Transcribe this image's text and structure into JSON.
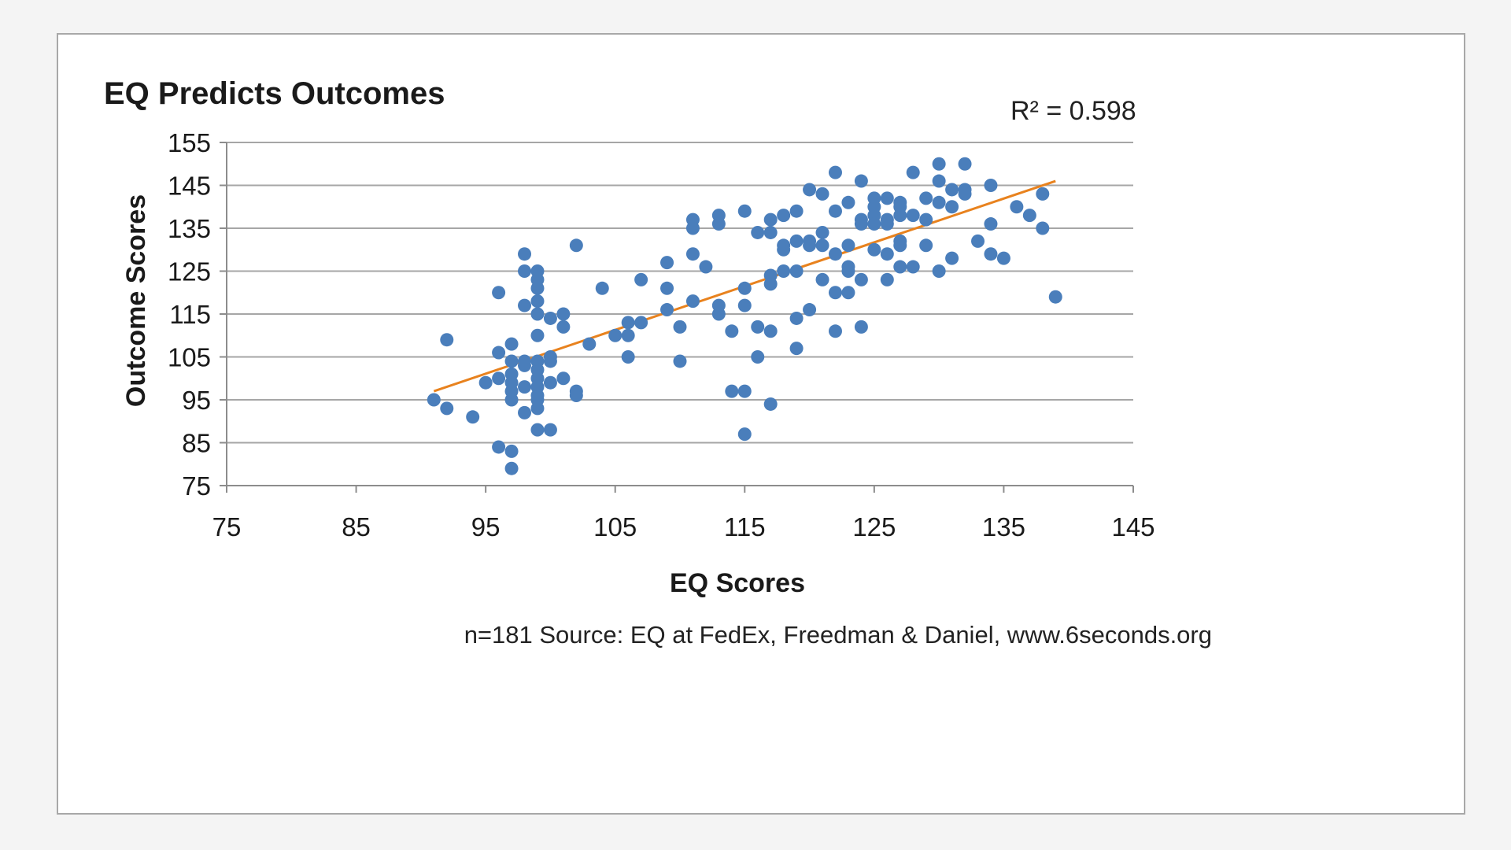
{
  "chart_data": {
    "type": "scatter",
    "title": "EQ Predicts Outcomes",
    "xlabel": "EQ Scores",
    "ylabel": "Outcome Scores",
    "xlim": [
      75,
      145
    ],
    "ylim": [
      75,
      155
    ],
    "x_ticks": [
      "75",
      "85",
      "95",
      "105",
      "115",
      "125",
      "135",
      "145"
    ],
    "y_ticks": [
      "155",
      "145",
      "135",
      "125",
      "115",
      "105",
      "95",
      "85",
      "75"
    ],
    "grid": "horizontal",
    "r_squared_label": "R² = 0.598",
    "footnote": "n=181  Source: EQ at FedEx, Freedman & Daniel, www.6seconds.org",
    "trendline": {
      "x": [
        91,
        139
      ],
      "y": [
        97,
        146
      ]
    },
    "colors": {
      "points": "#4a7ebb",
      "trendline": "#e8821e",
      "grid": "#a6a6a6",
      "axis": "#8c8c8c"
    },
    "series": [
      {
        "points": [
          [
            91,
            95
          ],
          [
            92,
            109
          ],
          [
            92,
            93
          ],
          [
            94,
            91
          ],
          [
            95,
            99
          ],
          [
            96,
            120
          ],
          [
            96,
            106
          ],
          [
            96,
            100
          ],
          [
            96,
            84
          ],
          [
            97,
            108
          ],
          [
            97,
            104
          ],
          [
            97,
            101
          ],
          [
            97,
            99
          ],
          [
            97,
            97
          ],
          [
            97,
            95
          ],
          [
            97,
            83
          ],
          [
            97,
            79
          ],
          [
            98,
            129
          ],
          [
            98,
            125
          ],
          [
            98,
            117
          ],
          [
            98,
            104
          ],
          [
            98,
            103
          ],
          [
            98,
            98
          ],
          [
            98,
            92
          ],
          [
            99,
            125
          ],
          [
            99,
            123
          ],
          [
            99,
            121
          ],
          [
            99,
            118
          ],
          [
            99,
            115
          ],
          [
            99,
            110
          ],
          [
            99,
            104
          ],
          [
            99,
            102
          ],
          [
            99,
            100
          ],
          [
            99,
            98
          ],
          [
            99,
            96
          ],
          [
            99,
            95
          ],
          [
            99,
            93
          ],
          [
            99,
            88
          ],
          [
            100,
            114
          ],
          [
            100,
            105
          ],
          [
            100,
            104
          ],
          [
            100,
            99
          ],
          [
            100,
            88
          ],
          [
            101,
            115
          ],
          [
            101,
            112
          ],
          [
            101,
            100
          ],
          [
            102,
            131
          ],
          [
            102,
            97
          ],
          [
            102,
            96
          ],
          [
            103,
            108
          ],
          [
            104,
            121
          ],
          [
            105,
            110
          ],
          [
            106,
            113
          ],
          [
            106,
            110
          ],
          [
            106,
            105
          ],
          [
            107,
            123
          ],
          [
            107,
            113
          ],
          [
            109,
            127
          ],
          [
            109,
            121
          ],
          [
            109,
            116
          ],
          [
            110,
            112
          ],
          [
            110,
            104
          ],
          [
            111,
            137
          ],
          [
            111,
            135
          ],
          [
            111,
            129
          ],
          [
            111,
            118
          ],
          [
            112,
            126
          ],
          [
            113,
            138
          ],
          [
            113,
            136
          ],
          [
            113,
            117
          ],
          [
            113,
            115
          ],
          [
            114,
            111
          ],
          [
            114,
            97
          ],
          [
            115,
            139
          ],
          [
            115,
            121
          ],
          [
            115,
            117
          ],
          [
            115,
            97
          ],
          [
            115,
            87
          ],
          [
            116,
            134
          ],
          [
            116,
            112
          ],
          [
            116,
            105
          ],
          [
            117,
            137
          ],
          [
            117,
            134
          ],
          [
            117,
            124
          ],
          [
            117,
            122
          ],
          [
            117,
            111
          ],
          [
            117,
            94
          ],
          [
            118,
            138
          ],
          [
            118,
            131
          ],
          [
            118,
            130
          ],
          [
            118,
            125
          ],
          [
            119,
            139
          ],
          [
            119,
            132
          ],
          [
            119,
            125
          ],
          [
            119,
            114
          ],
          [
            119,
            107
          ],
          [
            120,
            144
          ],
          [
            120,
            132
          ],
          [
            120,
            131
          ],
          [
            120,
            116
          ],
          [
            121,
            143
          ],
          [
            121,
            134
          ],
          [
            121,
            131
          ],
          [
            121,
            123
          ],
          [
            122,
            148
          ],
          [
            122,
            139
          ],
          [
            122,
            129
          ],
          [
            122,
            120
          ],
          [
            122,
            111
          ],
          [
            123,
            141
          ],
          [
            123,
            131
          ],
          [
            123,
            126
          ],
          [
            123,
            125
          ],
          [
            123,
            120
          ],
          [
            124,
            146
          ],
          [
            124,
            137
          ],
          [
            124,
            136
          ],
          [
            124,
            123
          ],
          [
            124,
            112
          ],
          [
            125,
            142
          ],
          [
            125,
            140
          ],
          [
            125,
            138
          ],
          [
            125,
            136
          ],
          [
            125,
            130
          ],
          [
            126,
            142
          ],
          [
            126,
            137
          ],
          [
            126,
            136
          ],
          [
            126,
            129
          ],
          [
            126,
            123
          ],
          [
            127,
            141
          ],
          [
            127,
            140
          ],
          [
            127,
            138
          ],
          [
            127,
            132
          ],
          [
            127,
            131
          ],
          [
            127,
            126
          ],
          [
            128,
            148
          ],
          [
            128,
            138
          ],
          [
            128,
            126
          ],
          [
            129,
            142
          ],
          [
            129,
            137
          ],
          [
            129,
            131
          ],
          [
            130,
            150
          ],
          [
            130,
            146
          ],
          [
            130,
            141
          ],
          [
            130,
            125
          ],
          [
            131,
            144
          ],
          [
            131,
            140
          ],
          [
            131,
            128
          ],
          [
            132,
            150
          ],
          [
            132,
            144
          ],
          [
            132,
            143
          ],
          [
            133,
            132
          ],
          [
            134,
            145
          ],
          [
            134,
            136
          ],
          [
            134,
            129
          ],
          [
            135,
            128
          ],
          [
            136,
            140
          ],
          [
            137,
            138
          ],
          [
            138,
            143
          ],
          [
            138,
            135
          ],
          [
            139,
            119
          ]
        ]
      }
    ]
  }
}
